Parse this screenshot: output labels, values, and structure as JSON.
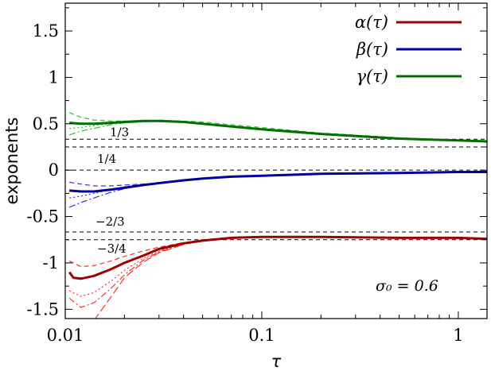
{
  "chart_data": {
    "type": "line",
    "xscale": "log",
    "xlim": [
      0.01,
      1.4
    ],
    "ylim": [
      -1.6,
      1.8
    ],
    "xlabel": "τ",
    "ylabel": "exponents",
    "xticks": [
      {
        "v": 0.01,
        "label": "0.01"
      },
      {
        "v": 0.1,
        "label": "0.1"
      },
      {
        "v": 1,
        "label": "1"
      }
    ],
    "yticks": [
      {
        "v": 1.5,
        "label": "1.5"
      },
      {
        "v": 1,
        "label": "1"
      },
      {
        "v": 0.5,
        "label": "0.5"
      },
      {
        "v": 0,
        "label": "0"
      },
      {
        "v": -0.5,
        "label": "-0.5"
      },
      {
        "v": -1,
        "label": "-1"
      },
      {
        "v": -1.5,
        "label": "-1.5"
      }
    ],
    "reference_lines": [
      {
        "y": 0.3333,
        "label": "1/3"
      },
      {
        "y": 0.25,
        "label": "1/4"
      },
      {
        "y": 0,
        "label": ""
      },
      {
        "y": -0.6667,
        "label": "−2/3"
      },
      {
        "y": -0.75,
        "label": "−3/4"
      }
    ],
    "annotation": "σ₀ = 0.6",
    "legend_position": "top-right",
    "series": [
      {
        "name": "α(τ)",
        "color": "#a00000",
        "x": [
          0.0105,
          0.011,
          0.012,
          0.014,
          0.017,
          0.02,
          0.025,
          0.03,
          0.04,
          0.05,
          0.07,
          0.1,
          0.2,
          0.5,
          1,
          1.4
        ],
        "y": [
          -1.1,
          -1.16,
          -1.17,
          -1.14,
          -1.07,
          -1.0,
          -0.92,
          -0.85,
          -0.79,
          -0.76,
          -0.73,
          -0.72,
          -0.72,
          -0.73,
          -0.73,
          -0.74
        ]
      },
      {
        "name": "β(τ)",
        "color": "#0000a0",
        "x": [
          0.0105,
          0.012,
          0.014,
          0.017,
          0.02,
          0.025,
          0.03,
          0.04,
          0.05,
          0.07,
          0.1,
          0.2,
          0.5,
          1,
          1.4
        ],
        "y": [
          -0.22,
          -0.23,
          -0.23,
          -0.21,
          -0.19,
          -0.16,
          -0.14,
          -0.11,
          -0.09,
          -0.07,
          -0.06,
          -0.04,
          -0.03,
          -0.02,
          -0.02
        ]
      },
      {
        "name": "γ(τ)",
        "color": "#007000",
        "x": [
          0.0105,
          0.012,
          0.014,
          0.017,
          0.02,
          0.025,
          0.03,
          0.04,
          0.05,
          0.07,
          0.1,
          0.2,
          0.5,
          1,
          1.4
        ],
        "y": [
          0.51,
          0.5,
          0.5,
          0.51,
          0.52,
          0.53,
          0.53,
          0.52,
          0.5,
          0.47,
          0.44,
          0.39,
          0.34,
          0.32,
          0.31
        ]
      }
    ],
    "variant_curves": [
      {
        "color": "#ff3030",
        "dash": "6,4",
        "x": [
          0.0105,
          0.012,
          0.014,
          0.017,
          0.02,
          0.025,
          0.03,
          0.04
        ],
        "y": [
          -0.98,
          -1.04,
          -1.03,
          -0.98,
          -0.93,
          -0.87,
          -0.83,
          -0.78
        ]
      },
      {
        "color": "#ff3030",
        "dash": "2,3",
        "x": [
          0.0105,
          0.012,
          0.014,
          0.017,
          0.02,
          0.025,
          0.03,
          0.04
        ],
        "y": [
          -1.3,
          -1.36,
          -1.32,
          -1.2,
          -1.08,
          -0.95,
          -0.87,
          -0.8
        ]
      },
      {
        "color": "#ff3030",
        "dash": "8,3,2,3",
        "x": [
          0.0105,
          0.012,
          0.014,
          0.017,
          0.02,
          0.025,
          0.03,
          0.04
        ],
        "y": [
          -1.38,
          -1.48,
          -1.43,
          -1.28,
          -1.13,
          -0.97,
          -0.88,
          -0.8
        ]
      },
      {
        "color": "#ff3030",
        "dash": "10,4",
        "x": [
          0.014,
          0.016,
          0.018,
          0.02,
          0.025,
          0.03,
          0.04
        ],
        "y": [
          -1.62,
          -1.45,
          -1.3,
          -1.16,
          -0.99,
          -0.89,
          -0.8
        ]
      },
      {
        "color": "#3030ff",
        "dash": "6,4",
        "x": [
          0.0105,
          0.012,
          0.014,
          0.017,
          0.02,
          0.025,
          0.03
        ],
        "y": [
          -0.13,
          -0.15,
          -0.17,
          -0.17,
          -0.16,
          -0.15,
          -0.14
        ]
      },
      {
        "color": "#3030ff",
        "dash": "2,3",
        "x": [
          0.0105,
          0.012,
          0.014,
          0.017,
          0.02,
          0.025,
          0.03
        ],
        "y": [
          -0.3,
          -0.28,
          -0.25,
          -0.21,
          -0.18,
          -0.15,
          -0.14
        ]
      },
      {
        "color": "#3030ff",
        "dash": "8,3,2,3",
        "x": [
          0.0105,
          0.012,
          0.014,
          0.017,
          0.02,
          0.025,
          0.03
        ],
        "y": [
          -0.4,
          -0.35,
          -0.3,
          -0.24,
          -0.2,
          -0.16,
          -0.14
        ]
      },
      {
        "color": "#30c030",
        "dash": "6,4",
        "x": [
          0.0105,
          0.012,
          0.014,
          0.017,
          0.02,
          0.025,
          0.03
        ],
        "y": [
          0.62,
          0.57,
          0.54,
          0.53,
          0.53,
          0.53,
          0.53
        ]
      },
      {
        "color": "#30c030",
        "dash": "2,3",
        "x": [
          0.0105,
          0.012,
          0.014,
          0.017,
          0.02,
          0.025,
          0.03
        ],
        "y": [
          0.45,
          0.46,
          0.48,
          0.5,
          0.51,
          0.52,
          0.53
        ]
      },
      {
        "color": "#30c030",
        "dash": "8,3,2,3",
        "x": [
          0.0105,
          0.012,
          0.014,
          0.017,
          0.02,
          0.025,
          0.03
        ],
        "y": [
          0.38,
          0.42,
          0.45,
          0.49,
          0.51,
          0.52,
          0.53
        ]
      },
      {
        "color": "#30c030",
        "dash": "6,4",
        "x": [
          0.03,
          0.05,
          0.1,
          0.2,
          0.5,
          1,
          1.4
        ],
        "y": [
          0.54,
          0.52,
          0.46,
          0.4,
          0.35,
          0.32,
          0.3
        ]
      }
    ]
  }
}
